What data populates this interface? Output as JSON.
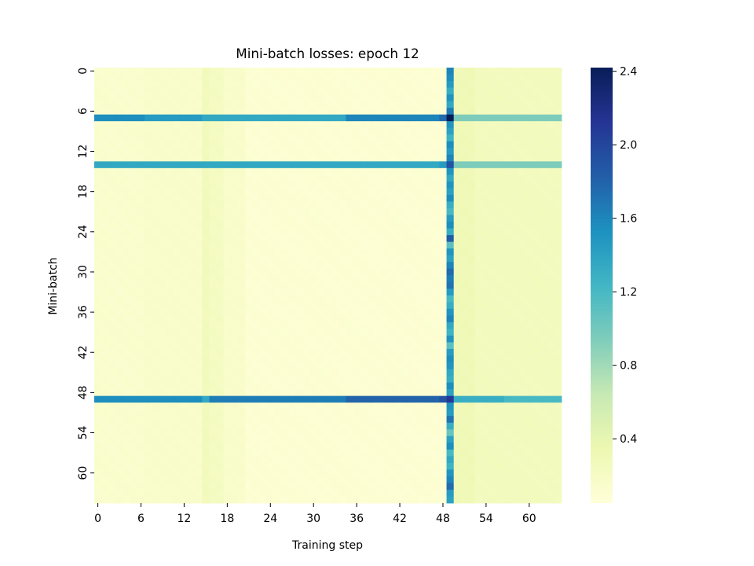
{
  "chart_data": {
    "type": "heatmap",
    "title": "Mini-batch losses: epoch 12",
    "xlabel": "Training step",
    "ylabel": "Mini-batch",
    "n_cols": 65,
    "n_rows": 65,
    "x_ticks": [
      "0",
      "6",
      "12",
      "18",
      "24",
      "30",
      "36",
      "42",
      "48",
      "54",
      "60"
    ],
    "y_ticks": [
      "0",
      "6",
      "12",
      "18",
      "24",
      "30",
      "36",
      "42",
      "48",
      "54",
      "60"
    ],
    "colorbar": {
      "min": 0.05,
      "max": 2.42,
      "ticks": [
        "0.4",
        "0.8",
        "1.2",
        "1.6",
        "2.0",
        "2.4"
      ],
      "colormap": "YlGnBu",
      "stops": [
        "#ffffd9",
        "#edf8b1",
        "#c7e9b4",
        "#7fcdbb",
        "#41b6c4",
        "#1d91c0",
        "#225ea8",
        "#253494",
        "#081d58"
      ]
    },
    "column_baseline": [
      {
        "from": 0,
        "to": 6,
        "value": 0.14
      },
      {
        "from": 7,
        "to": 14,
        "value": 0.16
      },
      {
        "from": 15,
        "to": 15,
        "value": 0.27
      },
      {
        "from": 16,
        "to": 17,
        "value": 0.22
      },
      {
        "from": 18,
        "to": 20,
        "value": 0.16
      },
      {
        "from": 21,
        "to": 47,
        "value": 0.1
      },
      {
        "from": 48,
        "to": 48,
        "value": 0.08
      },
      {
        "from": 50,
        "to": 52,
        "value": 0.3
      },
      {
        "from": 53,
        "to": 64,
        "value": 0.25
      }
    ],
    "high_loss_rows": [
      {
        "row": 7,
        "values_by_segment": [
          {
            "from": 0,
            "to": 6,
            "value": 1.55
          },
          {
            "from": 7,
            "to": 14,
            "value": 1.45
          },
          {
            "from": 15,
            "to": 34,
            "value": 1.35
          },
          {
            "from": 35,
            "to": 47,
            "value": 1.6
          },
          {
            "from": 48,
            "to": 48,
            "value": 1.75
          },
          {
            "from": 49,
            "to": 49,
            "value": 2.42
          },
          {
            "from": 50,
            "to": 64,
            "value": 0.95
          }
        ]
      },
      {
        "row": 14,
        "values_by_segment": [
          {
            "from": 0,
            "to": 47,
            "value": 1.35
          },
          {
            "from": 48,
            "to": 48,
            "value": 1.45
          },
          {
            "from": 49,
            "to": 49,
            "value": 1.9
          },
          {
            "from": 50,
            "to": 64,
            "value": 0.95
          }
        ]
      },
      {
        "row": 49,
        "values_by_segment": [
          {
            "from": 0,
            "to": 14,
            "value": 1.55
          },
          {
            "from": 15,
            "to": 15,
            "value": 1.35
          },
          {
            "from": 16,
            "to": 34,
            "value": 1.65
          },
          {
            "from": 35,
            "to": 47,
            "value": 1.8
          },
          {
            "from": 48,
            "to": 48,
            "value": 1.9
          },
          {
            "from": 49,
            "to": 49,
            "value": 2.1
          },
          {
            "from": 50,
            "to": 56,
            "value": 1.3
          },
          {
            "from": 57,
            "to": 64,
            "value": 1.2
          }
        ]
      }
    ],
    "high_loss_column": {
      "col": 49,
      "values": [
        1.6,
        1.55,
        1.45,
        1.3,
        1.5,
        1.35,
        1.65,
        2.42,
        1.5,
        1.4,
        1.25,
        1.55,
        1.45,
        1.6,
        1.9,
        1.5,
        1.35,
        1.5,
        1.4,
        1.55,
        1.3,
        1.2,
        1.45,
        1.55,
        1.3,
        1.85,
        1.1,
        1.5,
        1.4,
        1.6,
        1.75,
        1.65,
        1.7,
        1.45,
        1.2,
        1.3,
        1.5,
        1.6,
        1.35,
        1.25,
        1.5,
        1.1,
        1.45,
        1.55,
        1.5,
        1.35,
        1.3,
        1.55,
        1.4,
        2.1,
        1.5,
        1.45,
        1.7,
        1.3,
        1.05,
        1.4,
        1.55,
        1.2,
        1.35,
        1.25,
        1.5,
        1.6,
        1.75,
        1.45,
        1.4
      ]
    }
  }
}
